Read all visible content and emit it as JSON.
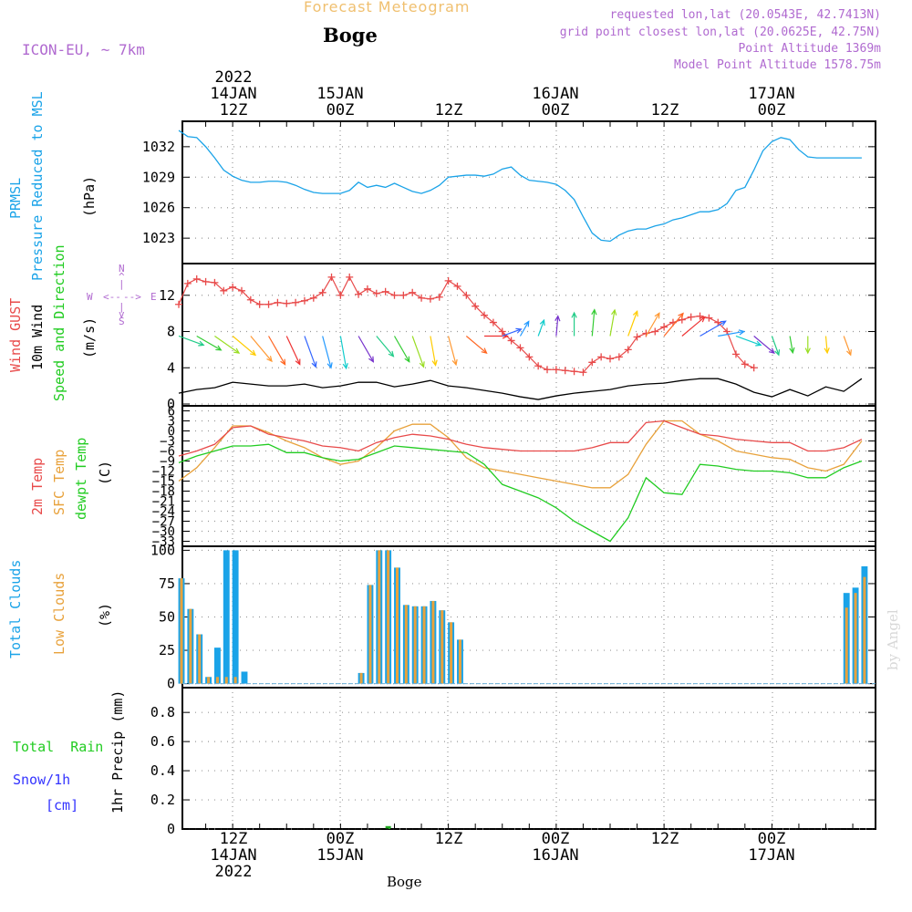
{
  "header": {
    "title": "Forecast Meteogram",
    "location": "Boge",
    "model": "ICON-EU, ~ 7km",
    "requested": "requested lon,lat (20.0543E, 42.7413N)",
    "grid_point": "grid point closest lon,lat (20.0625E, 42.75N)",
    "point_altitude": "Point Altitude 1369m",
    "model_altitude": "Model Point Altitude 1578.75m"
  },
  "time_axis": {
    "top_labels": [
      {
        "lines": [
          "2022",
          "14JAN",
          "12Z"
        ]
      },
      {
        "lines": [
          "15JAN",
          "00Z"
        ]
      },
      {
        "lines": [
          "12Z"
        ]
      },
      {
        "lines": [
          "16JAN",
          "00Z"
        ]
      },
      {
        "lines": [
          "12Z"
        ]
      },
      {
        "lines": [
          "17JAN",
          "00Z"
        ]
      }
    ],
    "bottom_labels": [
      {
        "lines": [
          "12Z",
          "14JAN",
          "2022"
        ]
      },
      {
        "lines": [
          "00Z",
          "15JAN"
        ]
      },
      {
        "lines": [
          "12Z"
        ]
      },
      {
        "lines": [
          "00Z",
          "16JAN"
        ]
      },
      {
        "lines": [
          "12Z"
        ]
      },
      {
        "lines": [
          "00Z",
          "17JAN"
        ]
      }
    ],
    "footer": "Boge"
  },
  "watermark": "by Angel",
  "colors": {
    "pressure": "#1aa3e8",
    "gust": "#e84a4a",
    "wind10m": "#000000",
    "temp2m": "#e84a4a",
    "sfc": "#e8a23c",
    "dewpt": "#22cc22",
    "total_clouds": "#1aa3e8",
    "low_clouds": "#e8a23c",
    "rain": "#22aa22",
    "snow": "#3333ff",
    "purple": "#b06ad0",
    "header_orange": "#f0c070"
  },
  "chart_data": [
    {
      "type": "line",
      "panel": "pressure",
      "title": "PRMSL Pressure Reduced to MSL",
      "ylabel": "(hPa)",
      "legend": [
        "PRMSL",
        "Pressure Reduced to MSL"
      ],
      "yticks": [
        1023,
        1026,
        1029,
        1032
      ],
      "ylim": [
        1020.5,
        1034.5
      ],
      "x_hours": [
        0,
        1,
        2,
        3,
        4,
        5,
        6,
        7,
        8,
        9,
        10,
        11,
        12,
        13,
        14,
        15,
        16,
        17,
        18,
        19,
        20,
        21,
        22,
        23,
        24,
        25,
        26,
        27,
        28,
        29,
        30,
        31,
        32,
        33,
        34,
        35,
        36,
        37,
        38,
        39,
        40,
        41,
        42,
        43,
        44,
        45,
        46,
        47,
        48,
        49,
        50,
        51,
        52,
        53,
        54,
        55,
        56,
        57,
        58,
        59,
        60,
        61,
        62,
        63,
        64,
        65,
        66,
        67,
        68,
        69,
        70,
        71,
        72,
        73,
        74,
        75,
        76
      ],
      "values": [
        1033.6,
        1033.0,
        1032.9,
        1032.0,
        1030.9,
        1029.7,
        1029.1,
        1028.7,
        1028.5,
        1028.5,
        1028.6,
        1028.6,
        1028.5,
        1028.2,
        1027.8,
        1027.5,
        1027.4,
        1027.4,
        1027.4,
        1027.7,
        1028.5,
        1028.0,
        1028.2,
        1028.0,
        1028.4,
        1028.0,
        1027.6,
        1027.4,
        1027.7,
        1028.2,
        1029.0,
        1029.1,
        1029.2,
        1029.2,
        1029.1,
        1029.3,
        1029.8,
        1030.0,
        1029.2,
        1028.7,
        1028.6,
        1028.5,
        1028.3,
        1027.7,
        1026.8,
        1025.1,
        1023.5,
        1022.8,
        1022.7,
        1023.3,
        1023.7,
        1023.9,
        1023.9,
        1024.2,
        1024.4,
        1024.8,
        1025.0,
        1025.3,
        1025.6,
        1025.6,
        1025.8,
        1026.4,
        1027.7,
        1028.0,
        1029.7,
        1031.6,
        1032.5,
        1032.9,
        1032.7,
        1031.7,
        1031.0,
        1030.9,
        1030.9,
        1030.9,
        1030.9,
        1030.9,
        1030.9
      ]
    },
    {
      "type": "line",
      "panel": "wind",
      "title": "Wind GUST / 10m Wind Speed and Direction",
      "ylabel": "(m/s)",
      "legend": [
        "Wind GUST",
        "10m Wind",
        "Speed and Direction"
      ],
      "compass": {
        "n": "N",
        "s": "S",
        "w": "W",
        "e": "E",
        "glyph_up": "^",
        "glyph_pipe": "|",
        "glyph_v": "v",
        "arrow_left": "<--",
        "arrow_right": "-->"
      },
      "yticks": [
        0,
        4,
        8,
        12
      ],
      "ylim": [
        -0.2,
        15.5
      ],
      "gust_x": [
        0,
        1,
        2,
        3,
        4,
        5,
        6,
        7,
        8,
        9,
        10,
        11,
        12,
        13,
        14,
        15,
        16,
        17,
        18,
        19,
        20,
        21,
        22,
        23,
        24,
        25,
        26,
        27,
        28,
        29,
        30,
        31,
        32,
        33,
        34,
        35,
        36,
        37,
        38,
        39,
        40,
        41,
        42,
        43,
        44,
        45,
        46,
        47,
        48,
        49,
        50,
        51,
        52,
        53,
        54,
        55,
        56,
        57,
        58,
        59,
        60,
        61,
        62,
        63,
        64
      ],
      "gust": [
        11.0,
        13.3,
        13.8,
        13.5,
        13.4,
        12.5,
        12.9,
        12.5,
        11.5,
        11.0,
        11.0,
        11.2,
        11.1,
        11.2,
        11.4,
        11.7,
        12.3,
        14.0,
        12.0,
        14.0,
        12.1,
        12.7,
        12.2,
        12.4,
        12.0,
        12.0,
        12.3,
        11.7,
        11.6,
        11.8,
        13.6,
        13.0,
        12.0,
        10.8,
        9.8,
        9.0,
        8.0,
        7.0,
        6.2,
        5.2,
        4.2,
        3.8,
        3.8,
        3.7,
        3.6,
        3.5,
        4.6,
        5.2,
        5.0,
        5.2,
        6.0,
        7.4,
        7.8,
        8.0,
        8.5,
        9.0,
        9.3,
        9.6,
        9.7,
        9.5,
        9.0,
        8.0,
        5.5,
        4.4,
        4.0
      ],
      "wind10_x": [
        0,
        2,
        4,
        6,
        8,
        10,
        12,
        14,
        16,
        18,
        20,
        22,
        24,
        26,
        28,
        30,
        32,
        34,
        36,
        38,
        40,
        42,
        44,
        46,
        48,
        50,
        52,
        54,
        56,
        58,
        60,
        62,
        64,
        66,
        68,
        70,
        72,
        74,
        76
      ],
      "wind10": [
        1.2,
        1.6,
        1.8,
        2.4,
        2.2,
        2.0,
        2.0,
        2.2,
        1.8,
        2.0,
        2.4,
        2.4,
        1.9,
        2.2,
        2.6,
        2.0,
        1.8,
        1.5,
        1.2,
        0.8,
        0.5,
        0.9,
        1.2,
        1.4,
        1.6,
        2.0,
        2.2,
        2.3,
        2.6,
        2.8,
        2.8,
        2.2,
        1.3,
        0.8,
        1.6,
        0.9,
        1.9,
        1.4,
        2.8
      ],
      "arrows_x": [
        0,
        2,
        4,
        6,
        8,
        10,
        12,
        14,
        16,
        18,
        20,
        22,
        24,
        26,
        28,
        30,
        32,
        34,
        36,
        38,
        40,
        42,
        44,
        46,
        48,
        50,
        52,
        54,
        56,
        58,
        60,
        62,
        64,
        66,
        68,
        70,
        72,
        74
      ],
      "arrow_dir_deg": [
        290,
        300,
        305,
        310,
        320,
        330,
        335,
        340,
        345,
        350,
        330,
        320,
        330,
        340,
        350,
        345,
        310,
        270,
        250,
        210,
        200,
        185,
        180,
        185,
        190,
        200,
        210,
        220,
        230,
        240,
        260,
        290,
        310,
        340,
        350,
        360,
        355,
        340
      ],
      "arrow_speed": [
        6,
        6.5,
        7,
        7,
        8,
        8,
        7.5,
        8,
        8,
        8,
        7,
        6,
        7,
        8,
        7,
        7,
        6,
        5,
        4,
        3,
        3,
        4,
        5,
        6,
        6,
        6,
        6,
        7,
        7,
        7,
        6,
        6,
        6,
        4,
        3,
        3,
        3,
        4
      ]
    },
    {
      "type": "line",
      "panel": "temperature",
      "title": "2m Temp / SFC Temp / dewpt Temp",
      "ylabel": "(C)",
      "legend": [
        "2m Temp",
        "SFC Temp",
        "dewpt Temp"
      ],
      "yticks": [
        6,
        3,
        0,
        -3,
        -6,
        -9,
        -12,
        -15,
        -18,
        -21,
        -24,
        -27,
        -30,
        -33
      ],
      "ytick_labels": [
        "6",
        "3",
        "0",
        "−3",
        "−6",
        "−9",
        "−12",
        "−15",
        "−18",
        "−21",
        "−24",
        "−27",
        "−30",
        "−33"
      ],
      "ylim": [
        -34.5,
        7.5
      ],
      "x_hours": [
        0,
        2,
        4,
        6,
        8,
        10,
        12,
        14,
        16,
        18,
        20,
        22,
        24,
        26,
        28,
        30,
        32,
        34,
        36,
        38,
        40,
        42,
        44,
        46,
        48,
        50,
        52,
        54,
        56,
        58,
        60,
        62,
        64,
        66,
        68,
        70,
        72,
        74,
        76
      ],
      "temp2m": [
        -7.5,
        -6,
        -4,
        1,
        1.5,
        -1,
        -2,
        -3,
        -4.5,
        -5,
        -6,
        -3.5,
        -2,
        -1,
        -1.5,
        -2.5,
        -4,
        -5,
        -5.5,
        -6,
        -6,
        -6,
        -6,
        -5,
        -3.5,
        -3.5,
        2.5,
        3,
        1,
        -1,
        -1.5,
        -2.5,
        -3,
        -3.5,
        -3.5,
        -6,
        -6,
        -5,
        -2.5
      ],
      "sfc": [
        -15,
        -11,
        -5,
        1.5,
        1.5,
        -0.5,
        -3,
        -5,
        -8,
        -10,
        -9,
        -5,
        0,
        2,
        2,
        -2,
        -8,
        -11,
        -12,
        -13,
        -14,
        -15,
        -16,
        -17,
        -17,
        -13,
        -4,
        3,
        3,
        -1,
        -3,
        -6,
        -7,
        -8,
        -8.5,
        -11,
        -12,
        -10,
        -3
      ],
      "dewpt": [
        -9.5,
        -7.5,
        -6,
        -4.5,
        -4.5,
        -4,
        -6.5,
        -6.5,
        -8,
        -9,
        -8.5,
        -6.5,
        -4.5,
        -5,
        -5.5,
        -6,
        -6.5,
        -10,
        -16,
        -18,
        -20,
        -23,
        -27,
        -30,
        -33,
        -26,
        -14,
        -18.5,
        -19,
        -10,
        -10.5,
        -11.5,
        -12,
        -12,
        -12.5,
        -14,
        -14,
        -11,
        -9
      ]
    },
    {
      "type": "bar",
      "panel": "clouds",
      "title": "Total Clouds / Low Clouds",
      "ylabel": "(%)",
      "legend": [
        "Total Clouds",
        "Low Clouds"
      ],
      "yticks": [
        0,
        25,
        50,
        75,
        100
      ],
      "ylim": [
        -3,
        103
      ],
      "x_hours": [
        0,
        1,
        2,
        3,
        4,
        5,
        6,
        7,
        8,
        9,
        10,
        11,
        12,
        13,
        14,
        15,
        16,
        17,
        18,
        19,
        20,
        21,
        22,
        23,
        24,
        25,
        26,
        27,
        28,
        29,
        30,
        31,
        32,
        33,
        34,
        35,
        36,
        37,
        38,
        39,
        40,
        41,
        42,
        43,
        44,
        45,
        46,
        47,
        48,
        49,
        50,
        51,
        52,
        53,
        54,
        55,
        56,
        57,
        58,
        59,
        60,
        61,
        62,
        63,
        64,
        65,
        66,
        67,
        68,
        69,
        70,
        71,
        72,
        73,
        74,
        75,
        76
      ],
      "total": [
        79,
        56,
        37,
        5,
        27,
        100,
        100,
        9,
        0,
        0,
        0,
        0,
        0,
        0,
        0,
        0,
        0,
        0,
        0,
        0,
        8,
        74,
        100,
        100,
        87,
        59,
        58,
        58,
        62,
        55,
        46,
        33,
        0,
        0,
        0,
        0,
        0,
        0,
        0,
        0,
        0,
        0,
        0,
        0,
        0,
        0,
        0,
        0,
        0,
        0,
        0,
        0,
        0,
        0,
        0,
        0,
        0,
        0,
        0,
        0,
        0,
        0,
        0,
        0,
        0,
        0,
        0,
        0,
        0,
        0,
        0,
        0,
        0,
        0,
        68,
        72,
        88
      ],
      "low": [
        79,
        56,
        37,
        5,
        5,
        5,
        5,
        0,
        0,
        0,
        0,
        0,
        0,
        0,
        0,
        0,
        0,
        0,
        0,
        0,
        8,
        74,
        100,
        100,
        87,
        59,
        58,
        58,
        62,
        55,
        46,
        33,
        0,
        0,
        0,
        0,
        0,
        0,
        0,
        0,
        0,
        0,
        0,
        0,
        0,
        0,
        0,
        0,
        0,
        0,
        0,
        0,
        0,
        0,
        0,
        0,
        0,
        0,
        0,
        0,
        0,
        0,
        0,
        0,
        0,
        0,
        0,
        0,
        0,
        0,
        0,
        0,
        0,
        0,
        57,
        68,
        80
      ]
    },
    {
      "type": "bar",
      "panel": "precip",
      "title": "1hr Precip",
      "ylabel": "1hr Precip (mm)",
      "legend": [
        "Total  Rain",
        "Snow/1h",
        "[cm]"
      ],
      "yticks": [
        0,
        0.2,
        0.4,
        0.6,
        0.8
      ],
      "ytick_labels": [
        "0",
        "0.2",
        "0.4",
        "0.6",
        "0.8"
      ],
      "ylim": [
        0,
        0.97
      ],
      "x_hours": [
        23
      ],
      "rain": [
        0.02
      ]
    }
  ]
}
